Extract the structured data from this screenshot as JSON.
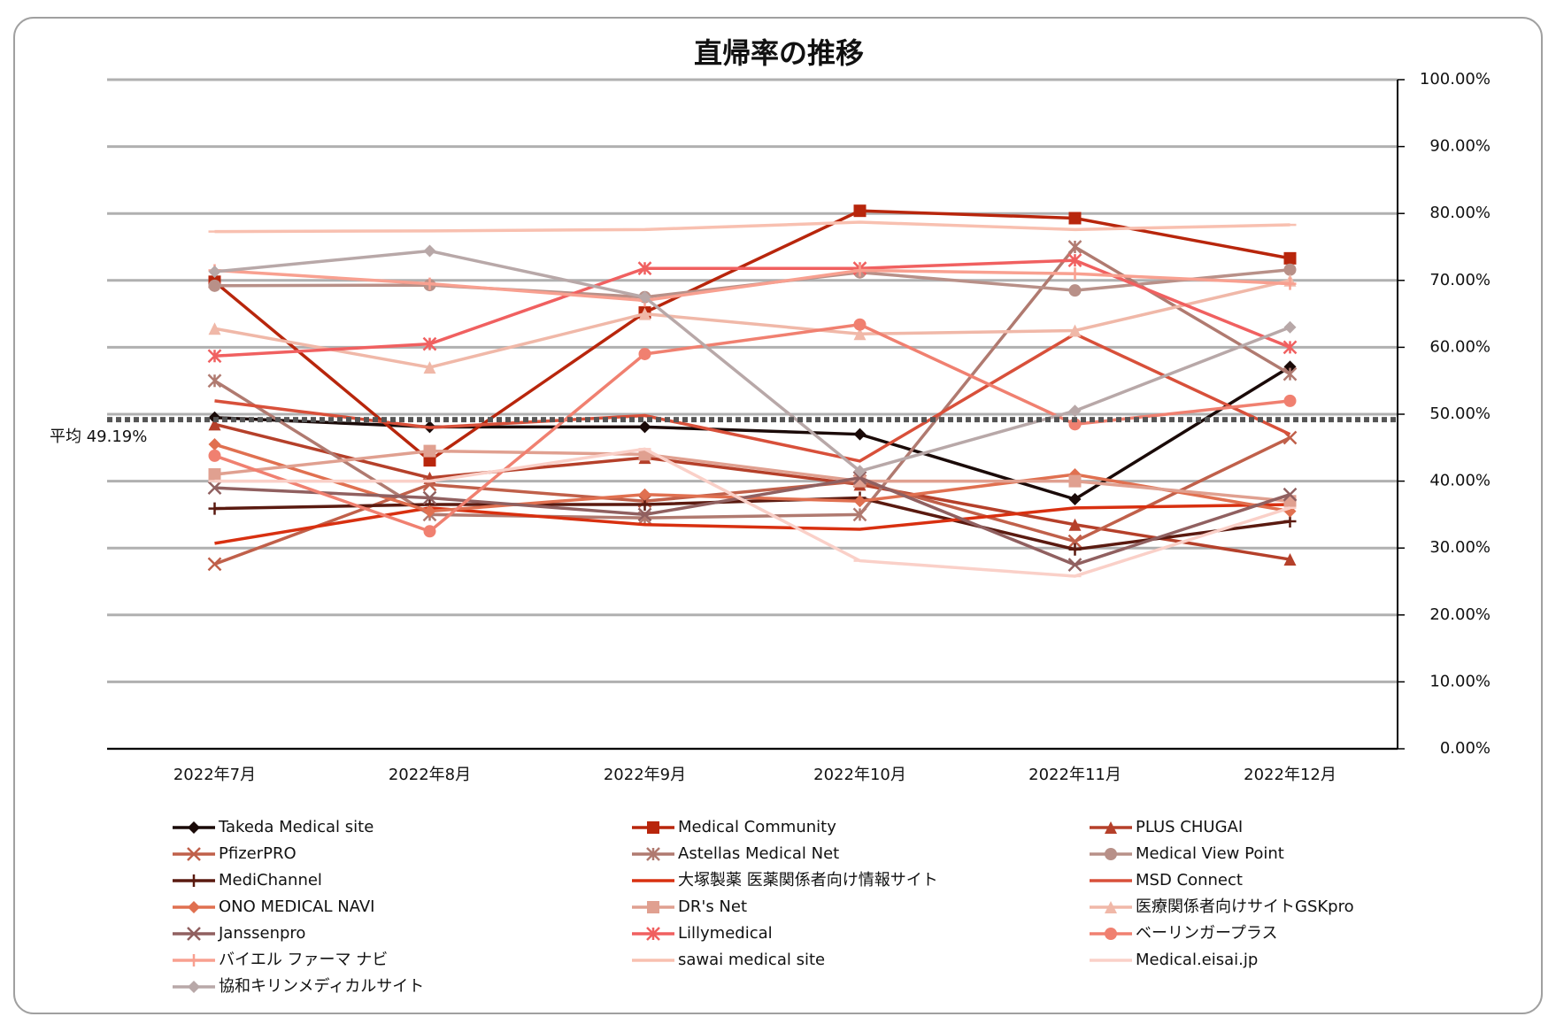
{
  "chart_data": {
    "type": "line",
    "title": "直帰率の推移",
    "categories": [
      "2022年7月",
      "2022年8月",
      "2022年9月",
      "2022年10月",
      "2022年11月",
      "2022年12月"
    ],
    "ylim": [
      0,
      100
    ],
    "yticks": [
      {
        "value": 0,
        "label": "0.00%"
      },
      {
        "value": 10,
        "label": "10.00%"
      },
      {
        "value": 20,
        "label": "20.00%"
      },
      {
        "value": 30,
        "label": "30.00%"
      },
      {
        "value": 40,
        "label": "40.00%"
      },
      {
        "value": 50,
        "label": "50.00%"
      },
      {
        "value": 60,
        "label": "60.00%"
      },
      {
        "value": 70,
        "label": "70.00%"
      },
      {
        "value": 80,
        "label": "80.00%"
      },
      {
        "value": 90,
        "label": "90.00%"
      },
      {
        "value": 100,
        "label": "100.00%"
      }
    ],
    "grid": true,
    "y_axis_side": "right",
    "legend_position": "bottom",
    "average": {
      "value": 49.19,
      "label": "平均 49.19%",
      "color": "#555555"
    },
    "series": [
      {
        "name": "Takeda Medical site",
        "color": "#1a0a08",
        "marker": "diamond",
        "values": [
          49.5,
          48.1,
          48.1,
          47.0,
          37.3,
          57.1
        ]
      },
      {
        "name": "Medical Community",
        "color": "#b8260c",
        "marker": "square",
        "values": [
          69.8,
          43.1,
          65.2,
          80.4,
          79.3,
          73.3
        ]
      },
      {
        "name": "PLUS CHUGAI",
        "color": "#b5402a",
        "marker": "triangle",
        "values": [
          48.5,
          40.5,
          43.5,
          39.5,
          33.5,
          28.3
        ]
      },
      {
        "name": "PfizerPRO",
        "color": "#c0604a",
        "marker": "x",
        "values": [
          27.6,
          39.5,
          37.0,
          40.0,
          31.0,
          46.5
        ]
      },
      {
        "name": "Astellas Medical Net",
        "color": "#b07a70",
        "marker": "star",
        "values": [
          55.0,
          35.0,
          34.5,
          35.0,
          75.0,
          56.0
        ]
      },
      {
        "name": "Medical View Point",
        "color": "#b89088",
        "marker": "circle",
        "values": [
          69.2,
          69.3,
          67.5,
          71.2,
          68.5,
          71.6
        ]
      },
      {
        "name": "MediChannel",
        "color": "#5a1a10",
        "marker": "plus",
        "values": [
          35.9,
          36.5,
          36.5,
          37.5,
          29.8,
          34.0
        ]
      },
      {
        "name": "大塚製薬 医薬関係者向け情報サイト",
        "color": "#d83010",
        "marker": "none",
        "values": [
          30.7,
          36.0,
          33.5,
          32.8,
          36.0,
          36.5
        ]
      },
      {
        "name": "MSD Connect",
        "color": "#d8503a",
        "marker": "none",
        "values": [
          52.0,
          48.0,
          49.8,
          43.0,
          62.0,
          47.0
        ]
      },
      {
        "name": "ONO MEDICAL NAVI",
        "color": "#e07050",
        "marker": "diamond",
        "values": [
          45.5,
          35.5,
          38.0,
          37.0,
          41.0,
          35.5
        ]
      },
      {
        "name": "DR's Net",
        "color": "#e0a090",
        "marker": "square",
        "values": [
          41.0,
          44.5,
          44.0,
          40.0,
          40.0,
          37.0
        ]
      },
      {
        "name": "医療関係者向けサイトGSKpro",
        "color": "#f0b8a8",
        "marker": "triangle",
        "values": [
          62.8,
          57.0,
          65.0,
          62.0,
          62.5,
          70.0
        ]
      },
      {
        "name": "Janssenpro",
        "color": "#906060",
        "marker": "x",
        "values": [
          39.0,
          37.5,
          35.0,
          40.5,
          27.5,
          38.0
        ]
      },
      {
        "name": "Lillymedical",
        "color": "#f06060",
        "marker": "star",
        "values": [
          58.7,
          60.5,
          71.8,
          71.8,
          73.0,
          60.0
        ]
      },
      {
        "name": "ベーリンガープラス",
        "color": "#f08070",
        "marker": "circle",
        "values": [
          43.8,
          32.5,
          59.0,
          63.4,
          48.5,
          52.0
        ]
      },
      {
        "name": "バイエル ファーマ ナビ",
        "color": "#f8a090",
        "marker": "plus",
        "values": [
          71.5,
          69.5,
          67.0,
          71.5,
          71.0,
          69.5
        ]
      },
      {
        "name": "sawai medical site",
        "color": "#f8c0b0",
        "marker": "dash",
        "values": [
          77.3,
          77.4,
          77.6,
          78.7,
          77.6,
          78.3
        ]
      },
      {
        "name": "Medical.eisai.jp",
        "color": "#fad0c8",
        "marker": "dash",
        "values": [
          40.0,
          40.0,
          44.8,
          28.1,
          25.8,
          36.0
        ]
      },
      {
        "name": "協和キリンメディカルサイト",
        "color": "#b8a8a8",
        "marker": "diamond",
        "values": [
          71.3,
          74.4,
          67.5,
          41.5,
          50.5,
          63.0
        ]
      }
    ]
  }
}
